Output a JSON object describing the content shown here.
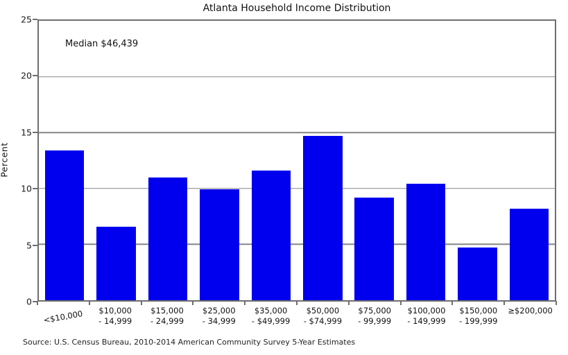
{
  "colors": {
    "bar": "#0000ee",
    "grid": "#858585",
    "spine": "#6e6e6e"
  },
  "annotation": "Median $46,439",
  "source": "Source: U.S. Census Bureau, 2010-2014 American Community Survey 5-Year Estimates",
  "chart_data": {
    "type": "bar",
    "title": "Atlanta Household Income Distribution",
    "xlabel": "",
    "ylabel": "Percent",
    "categories": [
      "<$10,000",
      "$10,000 - 14,999",
      "$15,000 - 24,999",
      "$25,000 - 34,999",
      "$35,000 - $49,999",
      "$50,000 - $74,999",
      "$75,000 - 99,999",
      "$100,000 - 149,999",
      "$150,000 - 199,999",
      "≥$200,000"
    ],
    "label_lines": [
      [
        "<$10,000"
      ],
      [
        "$10,000",
        "- 14,999"
      ],
      [
        "$15,000",
        "- 24,999"
      ],
      [
        "$25,000",
        "- 34,999"
      ],
      [
        "$35,000",
        "- $49,999"
      ],
      [
        "$50,000",
        "- $74,999"
      ],
      [
        "$75,000",
        "- 99,999"
      ],
      [
        "$100,000",
        "- 149,999"
      ],
      [
        "$150,000",
        "- 199,999"
      ],
      [
        "≥$200,000"
      ]
    ],
    "values": [
      13.4,
      6.6,
      11.0,
      9.9,
      11.6,
      14.7,
      9.2,
      10.4,
      4.7,
      8.2
    ],
    "ylim": [
      0,
      25
    ],
    "yticks": [
      0,
      5,
      10,
      15,
      20,
      25
    ],
    "grid": true,
    "legend": false,
    "annotation": "Median $46,439",
    "xtick_rotation_first": -10
  }
}
